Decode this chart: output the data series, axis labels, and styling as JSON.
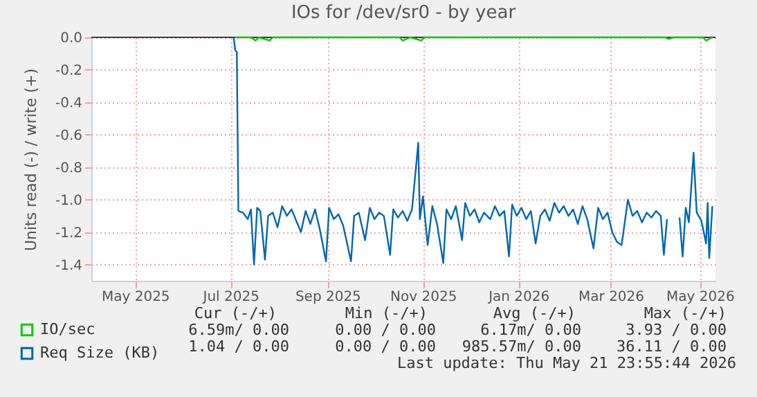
{
  "chart_data": {
    "type": "line",
    "title": "IOs for /dev/sr0 - by year",
    "ylabel": "Units read (-) / write (+)",
    "xlim": [
      "2025-04-18",
      "2026-05-22"
    ],
    "ylim": [
      -1.5,
      0.0
    ],
    "xticks": [
      {
        "value": "2025-05-16",
        "label": "May 2025"
      },
      {
        "value": "2025-07-16",
        "label": "Jul 2025"
      },
      {
        "value": "2025-09-16",
        "label": "Sep 2025"
      },
      {
        "value": "2025-11-16",
        "label": "Nov 2025"
      },
      {
        "value": "2026-01-16",
        "label": "Jan 2026"
      },
      {
        "value": "2026-03-16",
        "label": "Mar 2026"
      },
      {
        "value": "2026-05-12",
        "label": "May 2026"
      }
    ],
    "yticks": [
      {
        "value": 0.0,
        "label": "0.0"
      },
      {
        "value": -0.2,
        "label": "-0.2"
      },
      {
        "value": -0.4,
        "label": "-0.4"
      },
      {
        "value": -0.6,
        "label": "-0.6"
      },
      {
        "value": -0.8,
        "label": "-0.8"
      },
      {
        "value": -1.0,
        "label": "-1.0"
      },
      {
        "value": -1.2,
        "label": "-1.2"
      },
      {
        "value": -1.4,
        "label": "-1.4"
      }
    ],
    "grid": true,
    "legend": "bottom left",
    "marker": "none",
    "line_style": "solid",
    "ref_lines": [
      {
        "axis": "y",
        "value": 0.0,
        "color": "#000000"
      }
    ],
    "series": [
      {
        "name": "IO/sec",
        "color": "#00cc00",
        "x": [
          "2025-07-19",
          "2025-07-29",
          "2025-08-01",
          "2025-08-03",
          "2025-08-10",
          "2025-08-12",
          "2025-08-25",
          "2025-09-20",
          "2025-10-15",
          "2025-11-01",
          "2025-11-03",
          "2025-11-08",
          "2025-11-15",
          "2025-11-17",
          "2025-12-10",
          "2026-01-20",
          "2026-02-20",
          "2026-03-10",
          "2026-04-20",
          "2026-04-22",
          "2026-04-25",
          "2026-05-14",
          "2026-05-16",
          "2026-05-20"
        ],
        "values": [
          0.0,
          0.0,
          -0.02,
          0.0,
          -0.02,
          0.0,
          0.0,
          0.0,
          0.0,
          0.0,
          -0.02,
          0.0,
          -0.02,
          0.0,
          0.0,
          0.0,
          0.0,
          0.0,
          0.0,
          -0.01,
          0.0,
          0.0,
          -0.02,
          0.0
        ]
      },
      {
        "name": "Req Size (KB)",
        "color": "#0066b3",
        "x": [
          "2025-07-18",
          "2025-07-19",
          "2025-07-20",
          "2025-07-21",
          "2025-07-24",
          "2025-07-27",
          "2025-07-29",
          "2025-07-31",
          "2025-08-02",
          "2025-08-04",
          "2025-08-07",
          "2025-08-09",
          "2025-08-12",
          "2025-08-15",
          "2025-08-18",
          "2025-08-21",
          "2025-08-24",
          "2025-08-27",
          "2025-08-30",
          "2025-09-02",
          "2025-09-05",
          "2025-09-08",
          "2025-09-11",
          "2025-09-15",
          "2025-09-17",
          "2025-09-20",
          "2025-09-23",
          "2025-09-26",
          "2025-10-01",
          "2025-10-03",
          "2025-10-06",
          "2025-10-10",
          "2025-10-13",
          "2025-10-16",
          "2025-10-19",
          "2025-10-22",
          "2025-10-26",
          "2025-10-28",
          "2025-10-31",
          "2025-11-03",
          "2025-11-06",
          "2025-11-09",
          "2025-11-13",
          "2025-11-14",
          "2025-11-16",
          "2025-11-19",
          "2025-11-22",
          "2025-11-25",
          "2025-11-29",
          "2025-12-01",
          "2025-12-04",
          "2025-12-07",
          "2025-12-11",
          "2025-12-13",
          "2025-12-16",
          "2025-12-19",
          "2025-12-22",
          "2025-12-25",
          "2025-12-29",
          "2026-01-01",
          "2026-01-04",
          "2026-01-07",
          "2026-01-10",
          "2026-01-12",
          "2026-01-15",
          "2026-01-18",
          "2026-01-21",
          "2026-01-24",
          "2026-01-27",
          "2026-01-30",
          "2026-02-02",
          "2026-02-05",
          "2026-02-08",
          "2026-02-11",
          "2026-02-14",
          "2026-02-17",
          "2026-02-20",
          "2026-02-23",
          "2026-02-26",
          "2026-03-01",
          "2026-03-05",
          "2026-03-08",
          "2026-03-11",
          "2026-03-14",
          "2026-03-17",
          "2026-03-20",
          "2026-03-23",
          "2026-03-27",
          "2026-03-30",
          "2026-04-02",
          "2026-04-05",
          "2026-04-08",
          "2026-04-11",
          "2026-04-14",
          "2026-04-17",
          "2026-04-19",
          "2026-04-21",
          "2026-04-23",
          "2026-04-29",
          "2026-05-01",
          "2026-05-03",
          "2026-05-05",
          "2026-05-08",
          "2026-05-10",
          "2026-05-13",
          "2026-05-16",
          "2026-05-17",
          "2026-05-18",
          "2026-05-20"
        ],
        "values": [
          0.0,
          -0.08,
          -0.09,
          -1.07,
          -1.08,
          -1.12,
          -1.06,
          -1.4,
          -1.05,
          -1.07,
          -1.37,
          -1.1,
          -1.08,
          -1.17,
          -1.04,
          -1.1,
          -1.06,
          -1.13,
          -1.2,
          -1.07,
          -1.15,
          -1.06,
          -1.18,
          -1.38,
          -1.05,
          -1.12,
          -1.09,
          -1.16,
          -1.38,
          -1.1,
          -1.08,
          -1.25,
          -1.05,
          -1.12,
          -1.08,
          -1.1,
          -1.34,
          -1.06,
          -1.11,
          -1.07,
          -1.13,
          -1.06,
          -0.65,
          -1.12,
          -0.98,
          -1.28,
          -1.04,
          -1.15,
          -1.39,
          -1.06,
          -1.12,
          -1.04,
          -1.25,
          -1.02,
          -1.1,
          -1.06,
          -1.14,
          -1.08,
          -1.12,
          -1.04,
          -1.1,
          -1.07,
          -1.35,
          -1.03,
          -1.1,
          -1.05,
          -1.12,
          -1.07,
          -1.27,
          -1.1,
          -1.06,
          -1.13,
          -1.02,
          -1.08,
          -1.04,
          -1.1,
          -1.06,
          -1.15,
          -1.04,
          -1.12,
          -1.3,
          -1.05,
          -1.12,
          -1.08,
          -1.2,
          -1.26,
          -1.28,
          -1.0,
          -1.1,
          -1.07,
          -1.14,
          -1.08,
          -1.11,
          -1.07,
          -1.1,
          -1.34,
          -1.12,
          null,
          -1.11,
          -1.35,
          -1.05,
          -1.14,
          -0.71,
          -1.08,
          -1.13,
          -1.27,
          -1.02,
          -1.36,
          -1.04
        ]
      }
    ],
    "annotations": [
      "Cur (-/+)",
      "Min (-/+)",
      "Avg (-/+)",
      "Max (-/+)",
      "6.59m/  0.00",
      "0.00 /  0.00",
      "6.17m/  0.00",
      "3.93 /  0.00",
      "1.04 /  0.00",
      "0.00 /  0.00",
      "985.57m/  0.00",
      "36.11 /  0.00",
      "Last update: Thu May 21 23:55:44 2026"
    ]
  }
}
